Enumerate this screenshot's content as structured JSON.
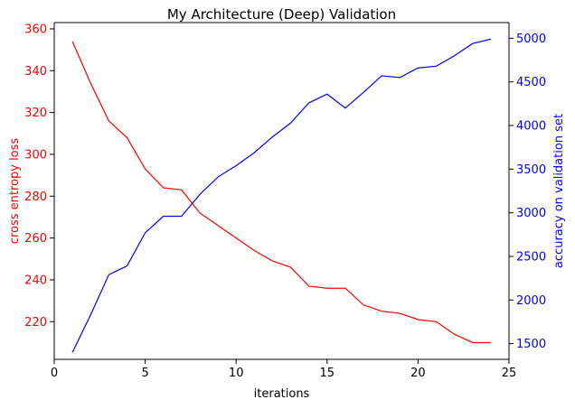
{
  "chart_data": {
    "type": "line",
    "title": "My Architecture (Deep) Validation",
    "xlabel": "iterations",
    "ylabel_left": "cross entropy loss",
    "ylabel_right": "accuracy on validation set",
    "xlim": [
      0,
      25
    ],
    "ylim_left": [
      202,
      363
    ],
    "ylim_right": [
      1320,
      5180
    ],
    "x_ticks": [
      0,
      5,
      10,
      15,
      20,
      25
    ],
    "y_left_ticks": [
      220,
      240,
      260,
      280,
      300,
      320,
      340,
      360
    ],
    "y_right_ticks": [
      1500,
      2000,
      2500,
      3000,
      3500,
      4000,
      4500,
      5000
    ],
    "grid": false,
    "legend": "none",
    "x": [
      1,
      2,
      3,
      4,
      5,
      6,
      7,
      8,
      9,
      10,
      11,
      12,
      13,
      14,
      15,
      16,
      17,
      18,
      19,
      20,
      21,
      22,
      23,
      24
    ],
    "series": [
      {
        "axis": "left",
        "color": "#ff0000",
        "values": [
          354,
          334,
          316,
          308,
          293,
          284,
          283,
          272,
          266,
          260,
          254,
          249,
          246,
          237,
          236,
          236,
          228,
          225,
          224,
          221,
          220,
          214,
          210,
          210
        ]
      },
      {
        "axis": "right",
        "color": "#0000ff",
        "values": [
          1400,
          1830,
          2290,
          2390,
          2770,
          2960,
          2960,
          3210,
          3410,
          3540,
          3690,
          3870,
          4030,
          4260,
          4360,
          4200,
          4380,
          4570,
          4550,
          4660,
          4680,
          4800,
          4940,
          4990
        ]
      }
    ]
  }
}
